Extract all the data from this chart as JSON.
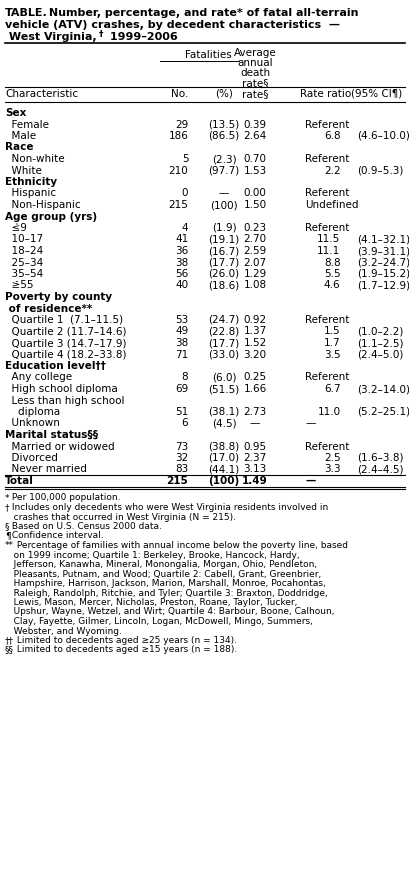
{
  "figsize": [
    4.1,
    8.81
  ],
  "dpi": 100,
  "title_lines": [
    {
      "text": "TABLE.",
      "bold": true,
      "continued": " Number, percentage, and rate* of fatal all-terrain"
    },
    {
      "text": "vehicle (ATV) crashes, by decedent characteristics  —",
      "bold": true
    },
    {
      "text": " West Virginia,",
      "bold": true,
      "sup": "†",
      "continued": " 1999–2006",
      "bold_continued": true
    }
  ],
  "col_x": {
    "char": 0.012,
    "no": 0.435,
    "pct": 0.51,
    "rate": 0.61,
    "rr": 0.745,
    "ci": 0.87
  },
  "rows": [
    {
      "type": "category",
      "label": "Sex"
    },
    {
      "type": "data",
      "char": "  Female",
      "no": "29",
      "pct": "(13.5)",
      "rate": "0.39",
      "rr": "Referent",
      "ci": ""
    },
    {
      "type": "data",
      "char": "  Male",
      "no": "186",
      "pct": "(86.5)",
      "rate": "2.64",
      "rr": "6.8",
      "ci": "(4.6–10.0)"
    },
    {
      "type": "category",
      "label": "Race"
    },
    {
      "type": "data",
      "char": "  Non-white",
      "no": "5",
      "pct": "(2.3)",
      "rate": "0.70",
      "rr": "Referent",
      "ci": ""
    },
    {
      "type": "data",
      "char": "  White",
      "no": "210",
      "pct": "(97.7)",
      "rate": "1.53",
      "rr": "2.2",
      "ci": "(0.9–5.3)"
    },
    {
      "type": "category",
      "label": "Ethnicity"
    },
    {
      "type": "data",
      "char": "  Hispanic",
      "no": "0",
      "pct": "—",
      "rate": "0.00",
      "rr": "Referent",
      "ci": ""
    },
    {
      "type": "data",
      "char": "  Non-Hispanic",
      "no": "215",
      "pct": "(100)",
      "rate": "1.50",
      "rr": "Undefined",
      "ci": ""
    },
    {
      "type": "category",
      "label": "Age group (yrs)"
    },
    {
      "type": "data",
      "char": "  ≤9",
      "no": "4",
      "pct": "(1.9)",
      "rate": "0.23",
      "rr": "Referent",
      "ci": "",
      "underline_first": true
    },
    {
      "type": "data",
      "char": "  10–17",
      "no": "41",
      "pct": "(19.1)",
      "rate": "2.70",
      "rr": "11.5",
      "ci": "(4.1–32.1)"
    },
    {
      "type": "data",
      "char": "  18–24",
      "no": "36",
      "pct": "(16.7)",
      "rate": "2.59",
      "rr": "11.1",
      "ci": "(3.9–31.1)"
    },
    {
      "type": "data",
      "char": "  25–34",
      "no": "38",
      "pct": "(17.7)",
      "rate": "2.07",
      "rr": "8.8",
      "ci": "(3.2–24.7)"
    },
    {
      "type": "data",
      "char": "  35–54",
      "no": "56",
      "pct": "(26.0)",
      "rate": "1.29",
      "rr": "5.5",
      "ci": "(1.9–15.2)"
    },
    {
      "type": "data",
      "char": "  ≥55",
      "no": "40",
      "pct": "(18.6)",
      "rate": "1.08",
      "rr": "4.6",
      "ci": "(1.7–12.9)",
      "underline_first": true
    },
    {
      "type": "category",
      "label": "Poverty by county"
    },
    {
      "type": "category",
      "label": " of residence**"
    },
    {
      "type": "data",
      "char": "  Quartile 1  (7.1–11.5)",
      "no": "53",
      "pct": "(24.7)",
      "rate": "0.92",
      "rr": "Referent",
      "ci": ""
    },
    {
      "type": "data",
      "char": "  Quartile 2 (11.7–14.6)",
      "no": "49",
      "pct": "(22.8)",
      "rate": "1.37",
      "rr": "1.5",
      "ci": "(1.0–2.2)"
    },
    {
      "type": "data",
      "char": "  Quartile 3 (14.7–17.9)",
      "no": "38",
      "pct": "(17.7)",
      "rate": "1.52",
      "rr": "1.7",
      "ci": "(1.1–2.5)"
    },
    {
      "type": "data",
      "char": "  Quartile 4 (18.2–33.8)",
      "no": "71",
      "pct": "(33.0)",
      "rate": "3.20",
      "rr": "3.5",
      "ci": "(2.4–5.0)"
    },
    {
      "type": "category",
      "label": "Education level††"
    },
    {
      "type": "data",
      "char": "  Any college",
      "no": "8",
      "pct": "(6.0)",
      "rate": "0.25",
      "rr": "Referent",
      "ci": ""
    },
    {
      "type": "data",
      "char": "  High school diploma",
      "no": "69",
      "pct": "(51.5)",
      "rate": "1.66",
      "rr": "6.7",
      "ci": "(3.2–14.0)"
    },
    {
      "type": "data",
      "char": "  Less than high school",
      "no": "",
      "pct": "",
      "rate": "",
      "rr": "",
      "ci": ""
    },
    {
      "type": "data",
      "char": "    diploma",
      "no": "51",
      "pct": "(38.1)",
      "rate": "2.73",
      "rr": "11.0",
      "ci": "(5.2–25.1)"
    },
    {
      "type": "data",
      "char": "  Unknown",
      "no": "6",
      "pct": "(4.5)",
      "rate": "—",
      "rr": "—",
      "ci": ""
    },
    {
      "type": "category",
      "label": "Marital status§§"
    },
    {
      "type": "data",
      "char": "  Married or widowed",
      "no": "73",
      "pct": "(38.8)",
      "rate": "0.95",
      "rr": "Referent",
      "ci": ""
    },
    {
      "type": "data",
      "char": "  Divorced",
      "no": "32",
      "pct": "(17.0)",
      "rate": "2.37",
      "rr": "2.5",
      "ci": "(1.6–3.8)"
    },
    {
      "type": "data",
      "char": "  Never married",
      "no": "83",
      "pct": "(44.1)",
      "rate": "3.13",
      "rr": "3.3",
      "ci": "(2.4–4.5)"
    },
    {
      "type": "total",
      "char": "Total",
      "no": "215",
      "pct": "(100)",
      "rate": "1.49",
      "rr": "—",
      "ci": ""
    }
  ],
  "footnotes": [
    {
      "marker": "*",
      "text": " Per 100,000 population."
    },
    {
      "marker": "†",
      "text": " Includes only decedents who were West Virginia residents involved in\n   crashes that occurred in West Virginia (N = 215)."
    },
    {
      "marker": "§",
      "text": " Based on U.S. Census 2000 data."
    },
    {
      "marker": "¶",
      "text": " Confidence interval."
    },
    {
      "marker": "**",
      "text": " Percentage of families with annual income below the poverty line, based\n   on 1999 income; Quartile 1: Berkeley, Brooke, Hancock, Hardy,\n   Jefferson, Kanawha, Mineral, Monongalia, Morgan, Ohio, Pendleton,\n   Pleasants, Putnam, and Wood; Quartile 2: Cabell, Grant, Greenbrier,\n   Hampshire, Harrison, Jackson, Marion, Marshall, Monroe, Pocahontas,\n   Raleigh, Randolph, Ritchie, and Tyler; Quartile 3: Braxton, Doddridge,\n   Lewis, Mason, Mercer, Nicholas, Preston, Roane, Taylor, Tucker,\n   Upshur, Wayne, Wetzel, and Wirt; Quartile 4: Barbour, Boone, Calhoun,\n   Clay, Fayette, Gilmer, Lincoln, Logan, McDowell, Mingo, Summers,\n   Webster, and Wyoming."
    },
    {
      "marker": "††",
      "text": " Limited to decedents aged ≥25 years (n = 134)."
    },
    {
      "marker": "§§",
      "text": " Limited to decedents aged ≥15 years (n = 188)."
    }
  ],
  "fs_title": 8.0,
  "fs_header": 7.5,
  "fs_body": 7.5,
  "fs_cat": 7.5,
  "fs_footnote": 6.5
}
